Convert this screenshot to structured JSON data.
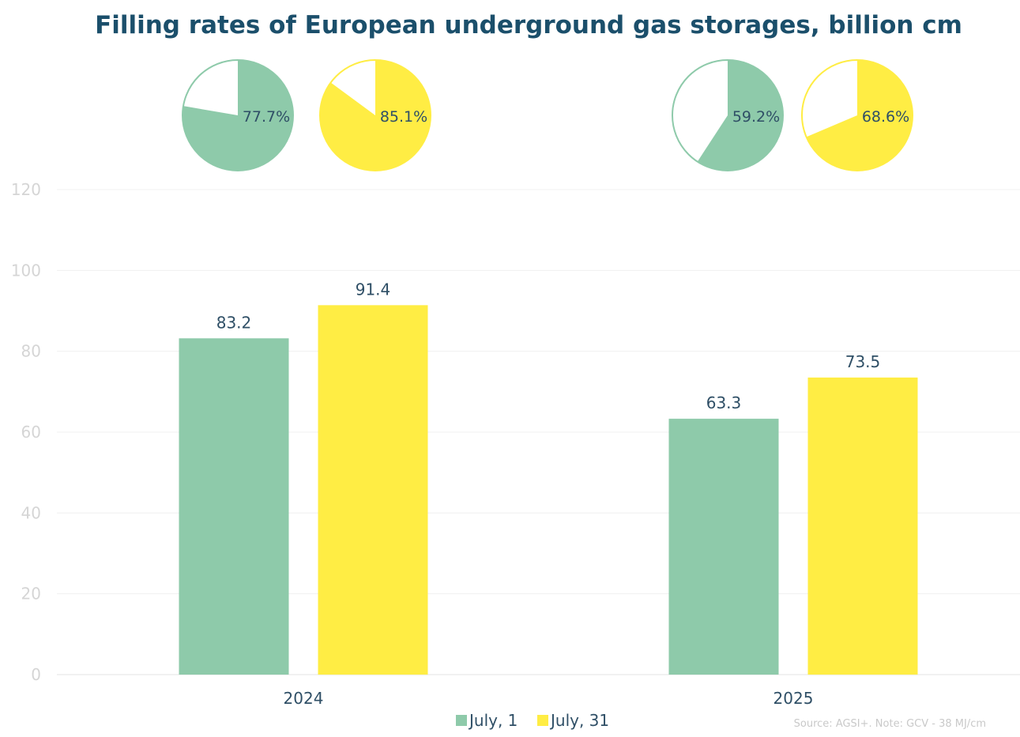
{
  "chart_data": {
    "type": "bar",
    "title": "Filling rates of European underground gas storages, billion cm",
    "categories": [
      "2024",
      "2025"
    ],
    "series": [
      {
        "name": "July, 1",
        "values": [
          83.2,
          63.3
        ],
        "color": "#8ecaaa"
      },
      {
        "name": "July, 31",
        "values": [
          91.4,
          73.5
        ],
        "color": "#ffed44"
      }
    ],
    "value_labels": [
      [
        "83.2",
        "63.3"
      ],
      [
        "91.4",
        "73.5"
      ]
    ],
    "ylim": [
      0,
      120
    ],
    "yticks": [
      "0",
      "20",
      "40",
      "60",
      "80",
      "100",
      "120"
    ],
    "grid": true,
    "legend_position": "bottom",
    "fill_rates": {
      "type": "pie",
      "values": [
        [
          77.7,
          59.2
        ],
        [
          85.1,
          68.6
        ]
      ],
      "labels": [
        [
          "77.7%",
          "59.2%"
        ],
        [
          "85.1%",
          "68.6%"
        ]
      ]
    },
    "source": "Source: AGSI+. Note: GCV - 38 MJ/cm"
  }
}
